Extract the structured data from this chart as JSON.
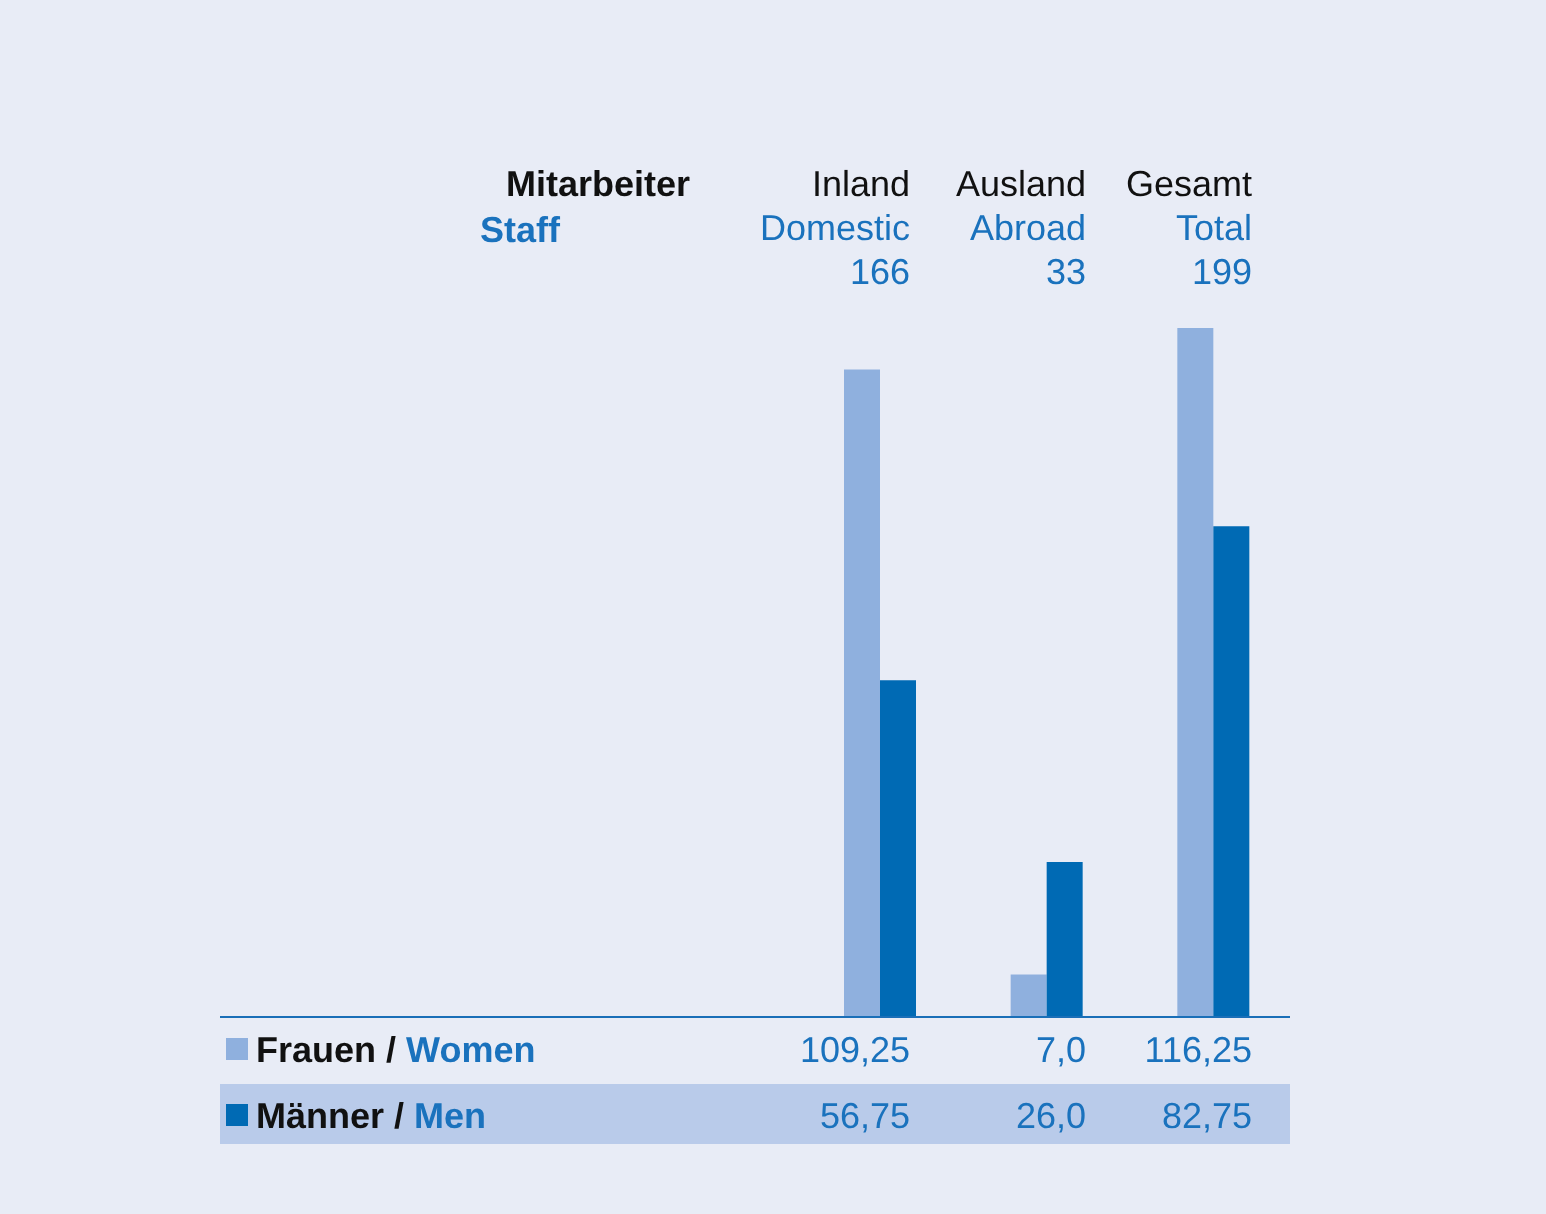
{
  "chart_data": {
    "type": "bar",
    "title": "Mitarbeiter",
    "subtitle": "Staff",
    "legend": "bottom left",
    "categories": [
      "Inland\nDomestic\n166",
      "Ausland\nAbroad\n33",
      "Gesamt\nTotal\n199"
    ],
    "series": [
      {
        "name": "Frauen / Women",
        "color": "#8fb0de",
        "values": [
          109.25,
          7.0,
          116.25
        ],
        "value_labels": [
          "109,25",
          "7,0",
          "116,25"
        ]
      },
      {
        "name": "Männer / Men",
        "color": "#006ab4",
        "values": [
          56.75,
          26.0,
          82.75
        ],
        "value_labels": [
          "56,75",
          "26,0",
          "82,75"
        ]
      }
    ]
  }
}
